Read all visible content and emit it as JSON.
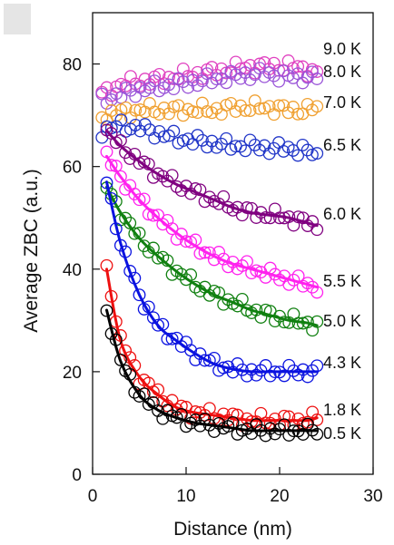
{
  "chart_data": {
    "type": "scatter",
    "title": "",
    "xlabel": "Distance (nm)",
    "ylabel": "Average ZBC (a.u.)",
    "xlim": [
      0,
      30
    ],
    "ylim": [
      0,
      90
    ],
    "xticks": [
      0,
      10,
      20,
      30
    ],
    "yticks": [
      0,
      20,
      40,
      60,
      80
    ],
    "grid": false,
    "legend": "inline labels at right end of each series",
    "series": [
      {
        "name": "9.0 K",
        "color": "#e040c0",
        "fit": false,
        "x": [
          1,
          3,
          5,
          7,
          9,
          11,
          13,
          15,
          17,
          19,
          21,
          23,
          24
        ],
        "y": [
          74,
          76,
          76.5,
          77,
          77.5,
          78,
          78.5,
          79,
          79.5,
          79.5,
          79.5,
          79,
          78
        ]
      },
      {
        "name": "8.0 K",
        "color": "#9a55d8",
        "fit": false,
        "x": [
          1,
          3,
          5,
          7,
          9,
          11,
          13,
          15,
          17,
          19,
          21,
          23,
          24
        ],
        "y": [
          73,
          74,
          75,
          75.5,
          76,
          76.5,
          77,
          77.5,
          78,
          78,
          77.5,
          77.5,
          77.5
        ]
      },
      {
        "name": "7.0 K",
        "color": "#f0a030",
        "fit": false,
        "x": [
          1,
          3,
          5,
          7,
          9,
          11,
          13,
          15,
          17,
          19,
          21,
          23,
          24
        ],
        "y": [
          70,
          70.5,
          71,
          71,
          71,
          71,
          71,
          71.5,
          71.5,
          71.5,
          71,
          71,
          71.5
        ]
      },
      {
        "name": "6.5 K",
        "color": "#2035c8",
        "fit": false,
        "x": [
          1,
          3,
          5,
          7,
          9,
          11,
          13,
          15,
          17,
          19,
          21,
          23,
          24
        ],
        "y": [
          67,
          68,
          67.5,
          66.5,
          65.5,
          65,
          64.5,
          64,
          64,
          63.5,
          63.5,
          63,
          62
        ]
      },
      {
        "name": "6.0 K",
        "color": "#800080",
        "fit": true,
        "x": [
          1.5,
          3,
          5,
          7,
          9,
          11,
          13,
          15,
          17,
          19,
          21,
          23,
          24
        ],
        "y": [
          67,
          64,
          61,
          58.5,
          56.5,
          55,
          53.5,
          52,
          51,
          50.5,
          50,
          49,
          48.5
        ]
      },
      {
        "name": "5.5 K",
        "color": "#ff22ee",
        "fit": true,
        "x": [
          1.5,
          3,
          5,
          7,
          9,
          11,
          13,
          15,
          17,
          19,
          21,
          23,
          24
        ],
        "y": [
          62,
          58,
          53.5,
          50,
          47,
          44.5,
          42.5,
          41,
          40,
          39,
          38,
          37,
          36.5
        ]
      },
      {
        "name": "5.0 K",
        "color": "#108010",
        "fit": true,
        "x": [
          1.5,
          3,
          5,
          7,
          9,
          11,
          13,
          15,
          17,
          19,
          21,
          23,
          24
        ],
        "y": [
          56,
          51,
          46,
          42.5,
          39.5,
          37,
          35,
          33.5,
          32,
          31,
          30,
          29.5,
          29
        ]
      },
      {
        "name": "4.3 K",
        "color": "#0a12e0",
        "fit": true,
        "x": [
          1.5,
          3,
          5,
          7,
          9,
          11,
          13,
          15,
          17,
          19,
          21,
          23,
          24
        ],
        "y": [
          57,
          45,
          35,
          29,
          26,
          23.5,
          21.5,
          20.5,
          20,
          20,
          20,
          20,
          20
        ]
      },
      {
        "name": "1.8 K",
        "color": "#ee1010",
        "fit": true,
        "x": [
          1.5,
          3,
          5,
          7,
          9,
          11,
          13,
          15,
          17,
          19,
          21,
          23,
          24
        ],
        "y": [
          40,
          26,
          19,
          15.5,
          13,
          12,
          11.5,
          11,
          10.5,
          10.5,
          10.5,
          10.5,
          11
        ]
      },
      {
        "name": "0.5 K",
        "color": "#000000",
        "fit": true,
        "x": [
          1.5,
          3,
          5,
          7,
          9,
          11,
          13,
          15,
          17,
          19,
          21,
          23,
          24
        ],
        "y": [
          32,
          22,
          15.5,
          12.5,
          11,
          10,
          9.5,
          9,
          8.5,
          8.5,
          8.5,
          8.5,
          8.5
        ]
      }
    ]
  }
}
